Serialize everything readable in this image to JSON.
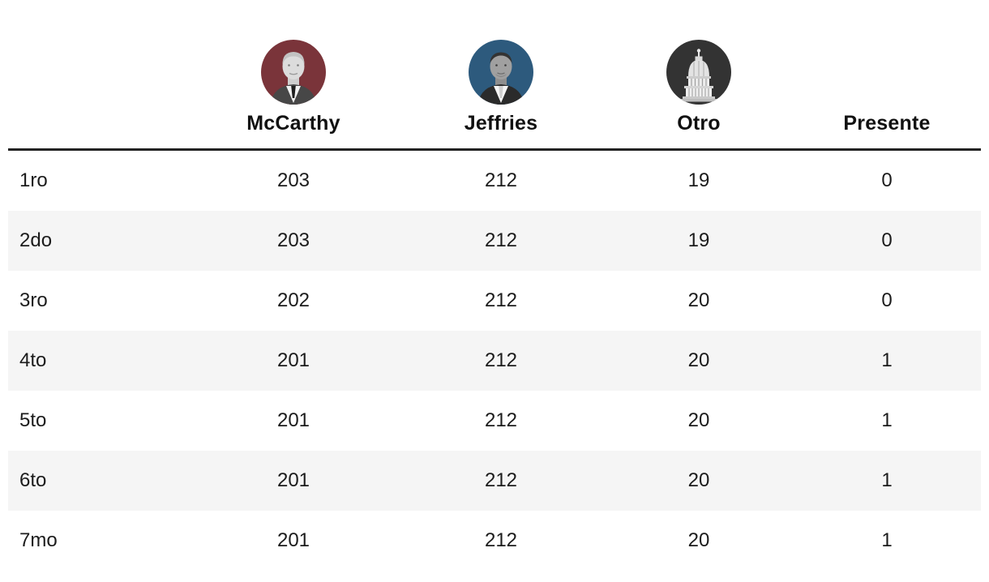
{
  "table": {
    "round_column_header": "",
    "columns": [
      {
        "key": "mccarthy",
        "label": "McCarthy",
        "avatar_icon": "mccarthy-portrait",
        "avatar_bg": "#7a343a"
      },
      {
        "key": "jeffries",
        "label": "Jeffries",
        "avatar_icon": "jeffries-portrait",
        "avatar_bg": "#2d5a7d"
      },
      {
        "key": "otro",
        "label": "Otro",
        "avatar_icon": "capitol-dome",
        "avatar_bg": "#333333"
      },
      {
        "key": "presente",
        "label": "Presente",
        "avatar_icon": null,
        "avatar_bg": null
      }
    ],
    "rows": [
      {
        "label": "1ro",
        "values": [
          "203",
          "212",
          "19",
          "0"
        ]
      },
      {
        "label": "2do",
        "values": [
          "203",
          "212",
          "19",
          "0"
        ]
      },
      {
        "label": "3ro",
        "values": [
          "202",
          "212",
          "20",
          "0"
        ]
      },
      {
        "label": "4to",
        "values": [
          "201",
          "212",
          "20",
          "1"
        ]
      },
      {
        "label": "5to",
        "values": [
          "201",
          "212",
          "20",
          "1"
        ]
      },
      {
        "label": "6to",
        "values": [
          "201",
          "212",
          "20",
          "1"
        ]
      },
      {
        "label": "7mo",
        "values": [
          "201",
          "212",
          "20",
          "1"
        ]
      }
    ]
  },
  "chart_data": {
    "type": "table",
    "title": "",
    "categories": [
      "1ro",
      "2do",
      "3ro",
      "4to",
      "5to",
      "6to",
      "7mo"
    ],
    "series": [
      {
        "name": "McCarthy",
        "values": [
          203,
          203,
          202,
          201,
          201,
          201,
          201
        ]
      },
      {
        "name": "Jeffries",
        "values": [
          212,
          212,
          212,
          212,
          212,
          212,
          212
        ]
      },
      {
        "name": "Otro",
        "values": [
          19,
          19,
          20,
          20,
          20,
          20,
          20
        ]
      },
      {
        "name": "Presente",
        "values": [
          0,
          0,
          0,
          1,
          1,
          1,
          1
        ]
      }
    ]
  },
  "colors": {
    "mccarthy_avatar_bg": "#7a343a",
    "jeffries_avatar_bg": "#2d5a7d",
    "otro_avatar_bg": "#333333",
    "row_stripe": "#f5f5f5",
    "header_divider": "#222222",
    "text": "#1a1a1a"
  }
}
